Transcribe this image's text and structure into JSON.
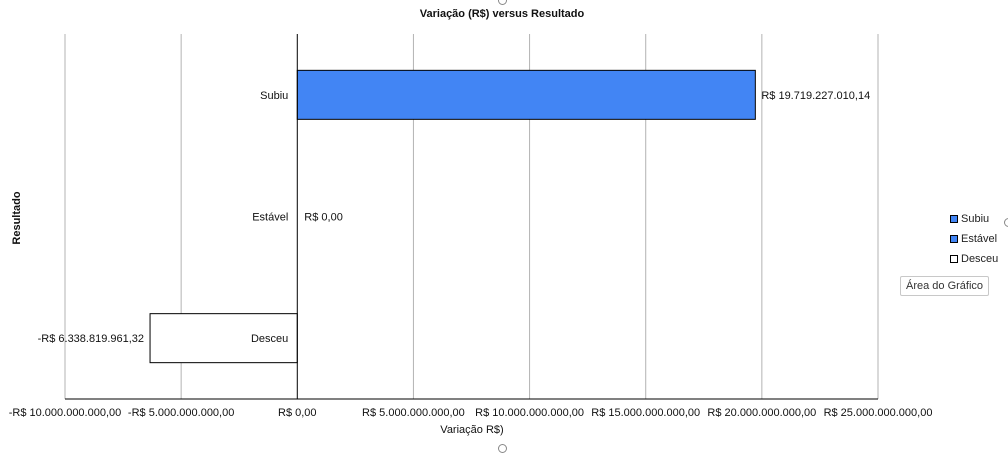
{
  "chart_data": {
    "type": "bar",
    "orientation": "horizontal",
    "title": "Variação (R$) versus Resultado",
    "xlabel": "Variação R$)",
    "ylabel": "Resultado",
    "xlim": [
      -10000000000,
      25000000000
    ],
    "x_ticks": [
      -10000000000,
      -5000000000,
      0,
      5000000000,
      10000000000,
      15000000000,
      20000000000,
      25000000000
    ],
    "x_tick_labels": [
      "-R$ 10.000.000.000,00",
      "-R$ 5.000.000.000,00",
      "R$ 0,00",
      "R$ 5.000.000.000,00",
      "R$ 10.000.000.000,00",
      "R$ 15.000.000.000,00",
      "R$ 20.000.000.000,00",
      "R$ 25.000.000.000,00"
    ],
    "grid": true,
    "legend_position": "right",
    "categories": [
      "Subiu",
      "Estável",
      "Desceu"
    ],
    "values": [
      19719227010.14,
      0,
      -6338819961.32
    ],
    "data_labels": [
      "R$ 19.719.227.010,14",
      "R$ 0,00",
      "-R$ 6.338.819.961,32"
    ],
    "colors": [
      "#4285f4",
      "#4285f4",
      "#ffffff"
    ]
  },
  "legend": {
    "items": [
      {
        "label": "Subiu",
        "color": "#4285f4"
      },
      {
        "label": "Estável",
        "color": "#4285f4"
      },
      {
        "label": "Desceu",
        "color": "#ffffff"
      }
    ]
  },
  "tooltip": {
    "text": "Área do Gráfico"
  }
}
